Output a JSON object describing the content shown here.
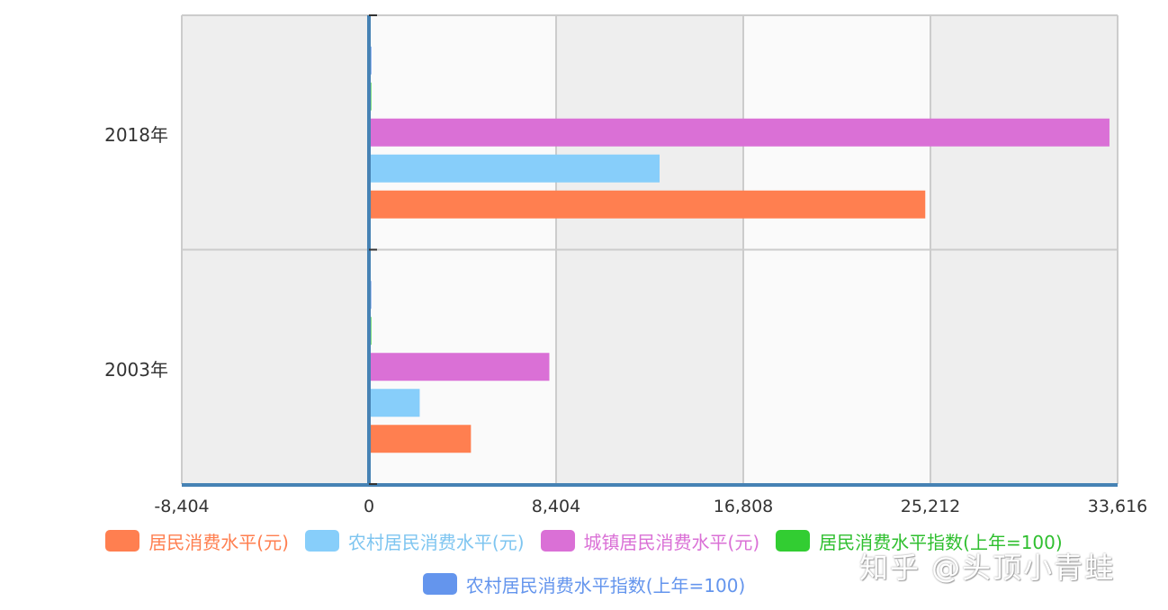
{
  "chart_data": {
    "type": "bar",
    "orientation": "horizontal",
    "title": "",
    "xlabel": "",
    "ylabel": "",
    "categories": [
      "2018年",
      "2003年"
    ],
    "series": [
      {
        "name": "居民消费水平(元)",
        "color": "#FF7F50",
        "values": [
          24980,
          4580
        ]
      },
      {
        "name": "农村居民消费水平(元)",
        "color": "#87CEFA",
        "values": [
          13050,
          2280
        ]
      },
      {
        "name": "城镇居民消费水平(元)",
        "color": "#DA70D6",
        "values": [
          33250,
          8100
        ]
      },
      {
        "name": "居民消费水平指数(上年=100)",
        "color": "#32CD32",
        "values": [
          105,
          106
        ]
      },
      {
        "name": "农村居民消费水平指数(上年=100)",
        "color": "#6495ED",
        "values": [
          108,
          103
        ]
      }
    ],
    "xticks": [
      "-8,404",
      "0",
      "8,404",
      "16,808",
      "25,212",
      "33,616"
    ],
    "xlim": [
      -8404,
      33616
    ],
    "grid": true,
    "legend_position": "bottom"
  },
  "watermark": "知乎 @头顶小青蛙"
}
